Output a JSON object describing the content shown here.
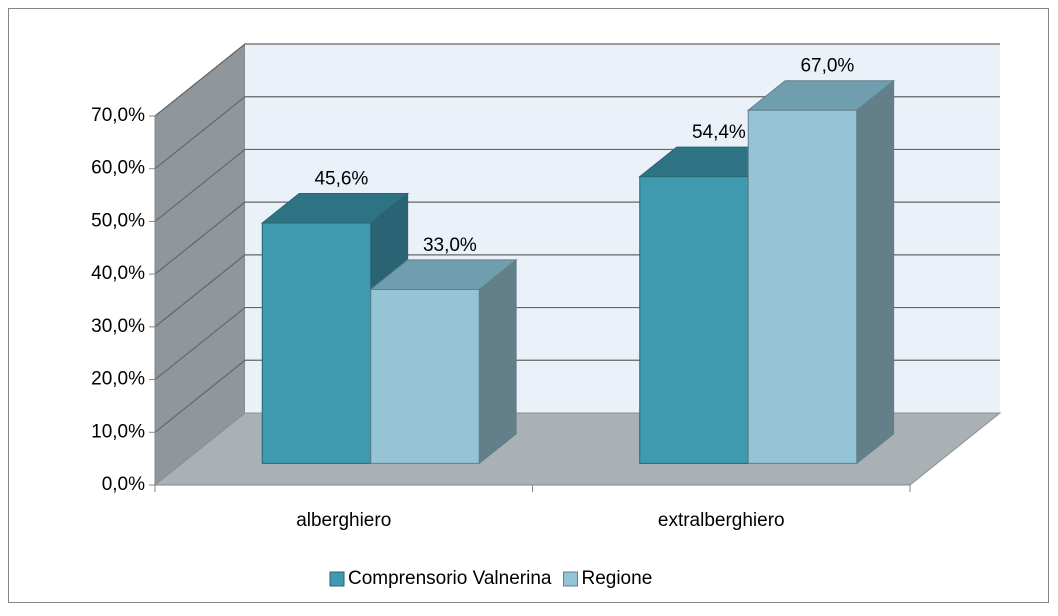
{
  "chart_data": {
    "type": "bar3d",
    "categories": [
      "alberghiero",
      "extralberghiero"
    ],
    "series": [
      {
        "name": "Comprensorio Valnerina",
        "color": "#3f9ab0",
        "top_color": "#2e7384",
        "side_color": "#2a6373",
        "values": [
          45.6,
          54.4
        ],
        "value_labels": [
          "45,6%",
          "54,4%"
        ]
      },
      {
        "name": "Regione",
        "color": "#94c4d6",
        "top_color": "#6f9fae",
        "side_color": "#637f8a",
        "values": [
          33.0,
          67.0
        ],
        "value_labels": [
          "33,0%",
          "67,0%"
        ]
      }
    ],
    "ylim": [
      0,
      70
    ],
    "yticks": [
      {
        "value": 0,
        "label": "0,0%"
      },
      {
        "value": 10,
        "label": "10,0%"
      },
      {
        "value": 20,
        "label": "20,0%"
      },
      {
        "value": 30,
        "label": "30,0%"
      },
      {
        "value": 40,
        "label": "40,0%"
      },
      {
        "value": 50,
        "label": "50,0%"
      },
      {
        "value": 60,
        "label": "60,0%"
      },
      {
        "value": 70,
        "label": "70,0%"
      }
    ],
    "grid": true,
    "legend": "bottom"
  }
}
